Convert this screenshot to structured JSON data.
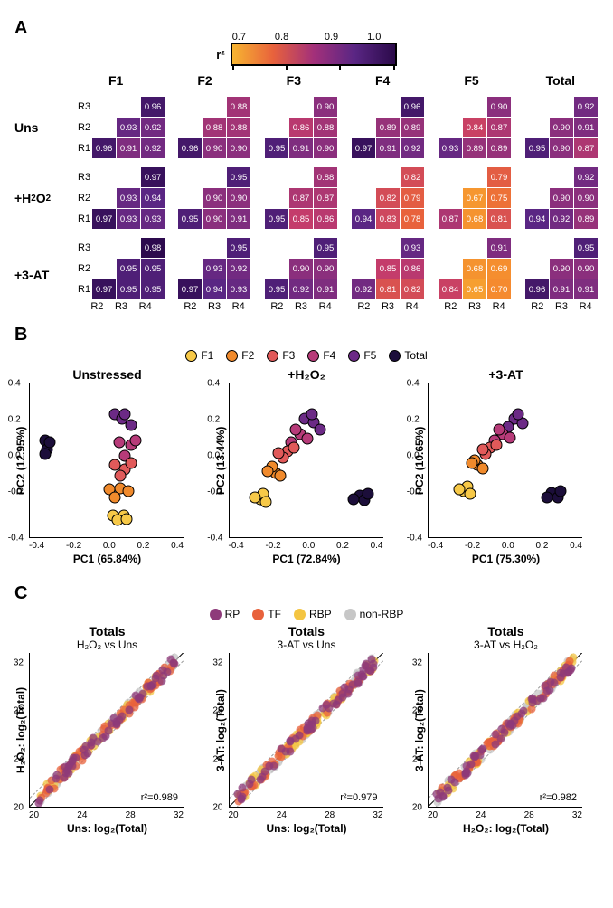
{
  "panelA": {
    "legend": {
      "label": "r²",
      "ticks": [
        "0.7",
        "0.8",
        "0.9",
        "1.0"
      ]
    },
    "col_titles": [
      "F1",
      "F2",
      "F3",
      "F4",
      "F5",
      "Total"
    ],
    "row_y_labels": [
      "R3",
      "R2",
      "R1"
    ],
    "row_x_labels": [
      "R2",
      "R3",
      "R4"
    ],
    "conditions": [
      {
        "name": "Uns",
        "label_html": "Uns"
      },
      {
        "name": "H2O2",
        "label_html": "+H<sub class='chem'>2</sub>O<sub class='chem'>2</sub>"
      },
      {
        "name": "3AT",
        "label_html": "+3-AT"
      }
    ],
    "color_stops": [
      {
        "v": 0.6,
        "c": "#f7b531"
      },
      {
        "v": 0.7,
        "c": "#f58a2f"
      },
      {
        "v": 0.78,
        "c": "#e8623c"
      },
      {
        "v": 0.85,
        "c": "#c43c6b"
      },
      {
        "v": 0.9,
        "c": "#8b2f7d"
      },
      {
        "v": 0.94,
        "c": "#5a2684"
      },
      {
        "v": 0.98,
        "c": "#2d0a4e"
      }
    ],
    "data": {
      "Uns": {
        "F1": [
          [
            null,
            null,
            0.96
          ],
          [
            null,
            0.93,
            0.92
          ],
          [
            0.96,
            0.91,
            0.92
          ]
        ],
        "F2": [
          [
            null,
            null,
            0.88
          ],
          [
            null,
            0.88,
            0.88
          ],
          [
            0.96,
            0.9,
            0.9
          ]
        ],
        "F3": [
          [
            null,
            null,
            0.9
          ],
          [
            null,
            0.86,
            0.88
          ],
          [
            0.95,
            0.91,
            0.9
          ]
        ],
        "F4": [
          [
            null,
            null,
            0.96
          ],
          [
            null,
            0.89,
            0.89
          ],
          [
            0.97,
            0.91,
            0.92
          ]
        ],
        "F5": [
          [
            null,
            null,
            0.9
          ],
          [
            null,
            0.84,
            0.87
          ],
          [
            0.93,
            0.89,
            0.89
          ]
        ],
        "Total": [
          [
            null,
            null,
            0.92
          ],
          [
            null,
            0.9,
            0.91
          ],
          [
            0.95,
            0.9,
            0.87
          ]
        ]
      },
      "H2O2": {
        "F1": [
          [
            null,
            null,
            0.97
          ],
          [
            null,
            0.93,
            0.94
          ],
          [
            0.97,
            0.93,
            0.93
          ]
        ],
        "F2": [
          [
            null,
            null,
            0.95
          ],
          [
            null,
            0.9,
            0.9
          ],
          [
            0.95,
            0.9,
            0.91
          ]
        ],
        "F3": [
          [
            null,
            null,
            0.88
          ],
          [
            null,
            0.87,
            0.87
          ],
          [
            0.95,
            0.85,
            0.86
          ]
        ],
        "F4": [
          [
            null,
            null,
            0.82
          ],
          [
            null,
            0.82,
            0.79
          ],
          [
            0.94,
            0.83,
            0.78
          ]
        ],
        "F5": [
          [
            null,
            null,
            0.79
          ],
          [
            null,
            0.67,
            0.75
          ],
          [
            0.87,
            0.68,
            0.81
          ]
        ],
        "Total": [
          [
            null,
            null,
            0.92
          ],
          [
            null,
            0.9,
            0.9
          ],
          [
            0.94,
            0.92,
            0.89
          ]
        ]
      },
      "3AT": {
        "F1": [
          [
            null,
            null,
            0.98
          ],
          [
            null,
            0.95,
            0.95
          ],
          [
            0.97,
            0.95,
            0.95
          ]
        ],
        "F2": [
          [
            null,
            null,
            0.95
          ],
          [
            null,
            0.93,
            0.92
          ],
          [
            0.97,
            0.94,
            0.93
          ]
        ],
        "F3": [
          [
            null,
            null,
            0.95
          ],
          [
            null,
            0.9,
            0.9
          ],
          [
            0.95,
            0.92,
            0.91
          ]
        ],
        "F4": [
          [
            null,
            null,
            0.93
          ],
          [
            null,
            0.85,
            0.86
          ],
          [
            0.92,
            0.81,
            0.82
          ]
        ],
        "F5": [
          [
            null,
            null,
            0.91
          ],
          [
            null,
            0.68,
            0.69
          ],
          [
            0.84,
            0.65,
            0.7
          ]
        ],
        "Total": [
          [
            null,
            null,
            0.95
          ],
          [
            null,
            0.9,
            0.9
          ],
          [
            0.96,
            0.91,
            0.91
          ]
        ]
      }
    }
  },
  "panelB": {
    "legend": [
      {
        "label": "F1",
        "color": "#f7c948"
      },
      {
        "label": "F2",
        "color": "#f08a2c"
      },
      {
        "label": "F3",
        "color": "#e15a5a"
      },
      {
        "label": "F4",
        "color": "#b73b79"
      },
      {
        "label": "F5",
        "color": "#6c2a86"
      },
      {
        "label": "Total",
        "color": "#1c0e3a"
      }
    ],
    "xlim": [
      -0.5,
      0.5
    ],
    "ylim": [
      -0.5,
      0.5
    ],
    "xticks": [
      "-0.4",
      "-0.2",
      "0.0",
      "0.2",
      "0.4"
    ],
    "yticks": [
      "0.4",
      "0.2",
      "0.0",
      "-0.2",
      "-0.4"
    ],
    "plots": [
      {
        "title": "Unstressed",
        "xlabel": "PC1 (65.84%)",
        "ylabel": "PC2 (12.95%)",
        "points": [
          {
            "x": -0.4,
            "y": 0.13,
            "c": "#1c0e3a"
          },
          {
            "x": -0.39,
            "y": 0.07,
            "c": "#1c0e3a"
          },
          {
            "x": -0.37,
            "y": 0.12,
            "c": "#1c0e3a"
          },
          {
            "x": -0.4,
            "y": 0.04,
            "c": "#1c0e3a"
          },
          {
            "x": 0.05,
            "y": 0.3,
            "c": "#6c2a86"
          },
          {
            "x": 0.1,
            "y": 0.27,
            "c": "#6c2a86"
          },
          {
            "x": 0.16,
            "y": 0.23,
            "c": "#6c2a86"
          },
          {
            "x": 0.12,
            "y": 0.3,
            "c": "#6c2a86"
          },
          {
            "x": 0.08,
            "y": 0.12,
            "c": "#b73b79"
          },
          {
            "x": 0.16,
            "y": 0.1,
            "c": "#b73b79"
          },
          {
            "x": 0.12,
            "y": 0.03,
            "c": "#b73b79"
          },
          {
            "x": 0.19,
            "y": 0.13,
            "c": "#b73b79"
          },
          {
            "x": 0.05,
            "y": -0.03,
            "c": "#e15a5a"
          },
          {
            "x": 0.12,
            "y": -0.06,
            "c": "#e15a5a"
          },
          {
            "x": 0.16,
            "y": -0.02,
            "c": "#e15a5a"
          },
          {
            "x": 0.09,
            "y": -0.1,
            "c": "#e15a5a"
          },
          {
            "x": 0.02,
            "y": -0.19,
            "c": "#f08a2c"
          },
          {
            "x": 0.09,
            "y": -0.18,
            "c": "#f08a2c"
          },
          {
            "x": 0.14,
            "y": -0.2,
            "c": "#f08a2c"
          },
          {
            "x": 0.05,
            "y": -0.24,
            "c": "#f08a2c"
          },
          {
            "x": 0.04,
            "y": -0.36,
            "c": "#f7c948"
          },
          {
            "x": 0.11,
            "y": -0.36,
            "c": "#f7c948"
          },
          {
            "x": 0.07,
            "y": -0.39,
            "c": "#f7c948"
          },
          {
            "x": 0.13,
            "y": -0.38,
            "c": "#f7c948"
          }
        ]
      },
      {
        "title": "+H₂O₂",
        "xlabel": "PC1 (72.84%)",
        "ylabel": "PC2 (13.44%)",
        "points": [
          {
            "x": 0.35,
            "y": -0.23,
            "c": "#1c0e3a"
          },
          {
            "x": 0.38,
            "y": -0.26,
            "c": "#1c0e3a"
          },
          {
            "x": 0.31,
            "y": -0.25,
            "c": "#1c0e3a"
          },
          {
            "x": 0.4,
            "y": -0.22,
            "c": "#1c0e3a"
          },
          {
            "x": -0.01,
            "y": 0.27,
            "c": "#6c2a86"
          },
          {
            "x": 0.05,
            "y": 0.25,
            "c": "#6c2a86"
          },
          {
            "x": 0.09,
            "y": 0.2,
            "c": "#6c2a86"
          },
          {
            "x": 0.04,
            "y": 0.3,
            "c": "#6c2a86"
          },
          {
            "x": -0.04,
            "y": 0.17,
            "c": "#b73b79"
          },
          {
            "x": -0.1,
            "y": 0.12,
            "c": "#b73b79"
          },
          {
            "x": 0.01,
            "y": 0.14,
            "c": "#b73b79"
          },
          {
            "x": -0.07,
            "y": 0.2,
            "c": "#b73b79"
          },
          {
            "x": -0.12,
            "y": 0.06,
            "c": "#e15a5a"
          },
          {
            "x": -0.15,
            "y": 0.02,
            "c": "#e15a5a"
          },
          {
            "x": -0.08,
            "y": 0.08,
            "c": "#e15a5a"
          },
          {
            "x": -0.18,
            "y": 0.05,
            "c": "#e15a5a"
          },
          {
            "x": -0.2,
            "y": -0.08,
            "c": "#f08a2c"
          },
          {
            "x": -0.22,
            "y": -0.04,
            "c": "#f08a2c"
          },
          {
            "x": -0.17,
            "y": -0.1,
            "c": "#f08a2c"
          },
          {
            "x": -0.25,
            "y": -0.07,
            "c": "#f08a2c"
          },
          {
            "x": -0.3,
            "y": -0.25,
            "c": "#f7c948"
          },
          {
            "x": -0.28,
            "y": -0.22,
            "c": "#f7c948"
          },
          {
            "x": -0.33,
            "y": -0.24,
            "c": "#f7c948"
          },
          {
            "x": -0.26,
            "y": -0.27,
            "c": "#f7c948"
          }
        ]
      },
      {
        "title": "+3-AT",
        "xlabel": "PC1 (75.30%)",
        "ylabel": "PC2 (10.65%)",
        "points": [
          {
            "x": 0.3,
            "y": -0.21,
            "c": "#1c0e3a"
          },
          {
            "x": 0.34,
            "y": -0.24,
            "c": "#1c0e3a"
          },
          {
            "x": 0.27,
            "y": -0.24,
            "c": "#1c0e3a"
          },
          {
            "x": 0.36,
            "y": -0.2,
            "c": "#1c0e3a"
          },
          {
            "x": 0.06,
            "y": 0.27,
            "c": "#6c2a86"
          },
          {
            "x": 0.11,
            "y": 0.24,
            "c": "#6c2a86"
          },
          {
            "x": 0.02,
            "y": 0.22,
            "c": "#6c2a86"
          },
          {
            "x": 0.08,
            "y": 0.3,
            "c": "#6c2a86"
          },
          {
            "x": -0.02,
            "y": 0.17,
            "c": "#b73b79"
          },
          {
            "x": -0.07,
            "y": 0.13,
            "c": "#b73b79"
          },
          {
            "x": 0.03,
            "y": 0.15,
            "c": "#b73b79"
          },
          {
            "x": -0.04,
            "y": 0.2,
            "c": "#b73b79"
          },
          {
            "x": -0.1,
            "y": 0.08,
            "c": "#e15a5a"
          },
          {
            "x": -0.13,
            "y": 0.04,
            "c": "#e15a5a"
          },
          {
            "x": -0.06,
            "y": 0.1,
            "c": "#e15a5a"
          },
          {
            "x": -0.15,
            "y": 0.07,
            "c": "#e15a5a"
          },
          {
            "x": -0.18,
            "y": -0.03,
            "c": "#f08a2c"
          },
          {
            "x": -0.2,
            "y": 0.0,
            "c": "#f08a2c"
          },
          {
            "x": -0.15,
            "y": -0.05,
            "c": "#f08a2c"
          },
          {
            "x": -0.22,
            "y": -0.02,
            "c": "#f08a2c"
          },
          {
            "x": -0.27,
            "y": -0.2,
            "c": "#f7c948"
          },
          {
            "x": -0.25,
            "y": -0.17,
            "c": "#f7c948"
          },
          {
            "x": -0.3,
            "y": -0.19,
            "c": "#f7c948"
          },
          {
            "x": -0.23,
            "y": -0.22,
            "c": "#f7c948"
          }
        ]
      }
    ]
  },
  "panelC": {
    "legend": [
      {
        "label": "RP",
        "color": "#8e3a7a"
      },
      {
        "label": "TF",
        "color": "#e8623c"
      },
      {
        "label": "RBP",
        "color": "#f4c542"
      },
      {
        "label": "non-RBP",
        "color": "#c7c7c7"
      }
    ],
    "xlim": [
      16,
      34
    ],
    "ylim": [
      16,
      34
    ],
    "ticks": [
      "20",
      "24",
      "28",
      "32"
    ],
    "scatter_colors": [
      "#c7c7c7",
      "#f4c542",
      "#e8623c",
      "#8e3a7a"
    ],
    "scatter_n_per_color": 55,
    "plots": [
      {
        "title1": "Totals",
        "title2": "H₂O₂ vs Uns",
        "xlabel": "Uns: log₂(Total)",
        "ylabel": "H₂O₂: log₂(Total)",
        "r2": "r²=0.989"
      },
      {
        "title1": "Totals",
        "title2": "3-AT vs Uns",
        "xlabel": "Uns: log₂(Total)",
        "ylabel": "3-AT: log₂(Total)",
        "r2": "r²=0.979"
      },
      {
        "title1": "Totals",
        "title2": "3-AT vs H₂O₂",
        "xlabel": "H₂O₂: log₂(Total)",
        "ylabel": "3-AT: log₂(Total)",
        "r2": "r²=0.982"
      }
    ]
  }
}
